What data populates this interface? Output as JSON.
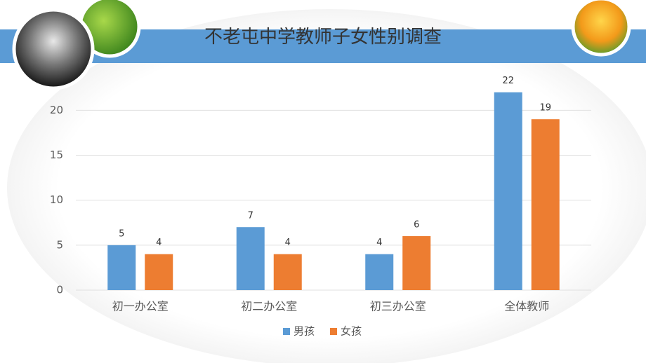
{
  "chart_data": {
    "type": "bar",
    "title": "不老屯中学教师子女性别调查",
    "categories": [
      "初一办公室",
      "初二办公室",
      "初三办公室",
      "全体教师"
    ],
    "series": [
      {
        "name": "男孩",
        "color": "#5b9bd5",
        "values": [
          5,
          7,
          4,
          22
        ]
      },
      {
        "name": "女孩",
        "color": "#ed7d31",
        "values": [
          4,
          4,
          6,
          19
        ]
      }
    ],
    "ylim": [
      0,
      24
    ],
    "yticks": [
      0,
      5,
      10,
      15,
      20
    ],
    "grid": true,
    "legend": "bottom",
    "data_labels": true
  }
}
